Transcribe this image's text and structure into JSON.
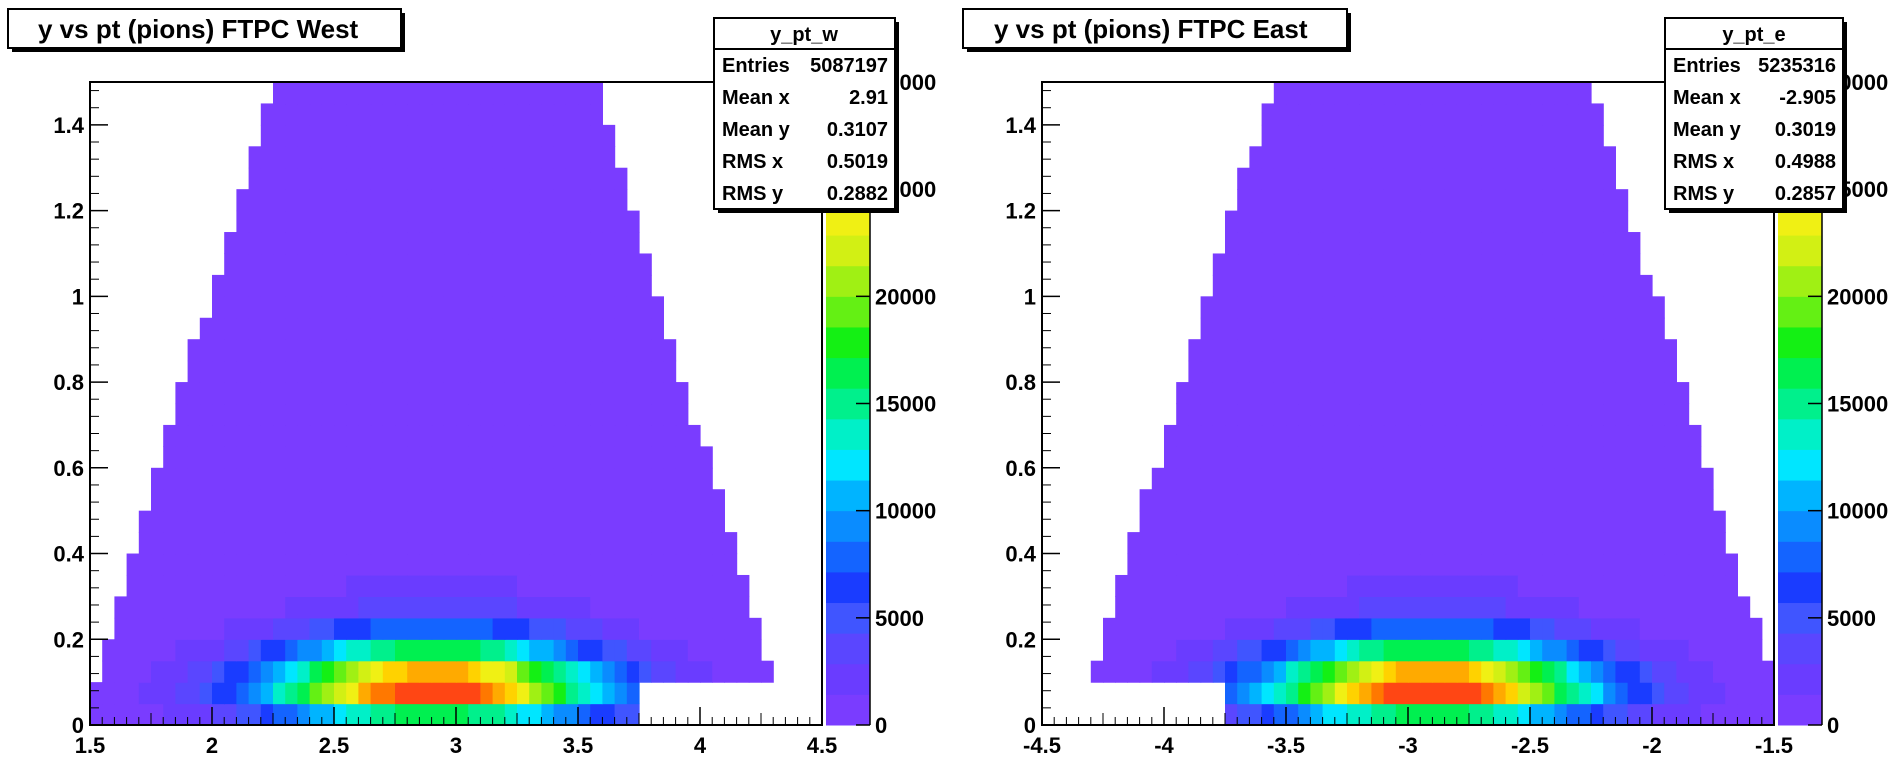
{
  "palette": [
    "#7a3cff",
    "#6a3cff",
    "#5a46ff",
    "#4055ff",
    "#1a3cff",
    "#1464ff",
    "#0a8cff",
    "#00b4ff",
    "#00e6ff",
    "#00f0c8",
    "#00f08c",
    "#00f050",
    "#14f014",
    "#64f014",
    "#a0f014",
    "#d2f014",
    "#f0f014",
    "#ffd200",
    "#ffaa00",
    "#ff7800",
    "#ff4614"
  ],
  "chart_data": [
    {
      "id": "west",
      "type": "heatmap",
      "title": "y vs pt (pions) FTPC West",
      "xlim": [
        1.5,
        4.5
      ],
      "ylim": [
        0,
        1.5
      ],
      "zlim": [
        0,
        30000
      ],
      "x_ticks": [
        "1.5",
        "2",
        "2.5",
        "3",
        "3.5",
        "4",
        "4.5"
      ],
      "x_tick_values": [
        1.5,
        2,
        2.5,
        3,
        3.5,
        4,
        4.5
      ],
      "y_ticks": [
        "0",
        "0.2",
        "0.4",
        "0.6",
        "0.8",
        "1",
        "1.2",
        "1.4"
      ],
      "y_tick_values": [
        0,
        0.2,
        0.4,
        0.6,
        0.8,
        1.0,
        1.2,
        1.4
      ],
      "z_ticks": [
        "0",
        "5000",
        "10000",
        "15000",
        "20000",
        "25000",
        "30000"
      ],
      "z_tick_values": [
        0,
        5000,
        10000,
        15000,
        20000,
        25000,
        30000
      ],
      "stats": {
        "name": "y_pt_w",
        "rows": [
          [
            "Entries",
            "5087197"
          ],
          [
            "Mean x",
            "2.91"
          ],
          [
            "Mean y",
            "0.3107"
          ],
          [
            "RMS x",
            "0.5019"
          ],
          [
            "RMS y",
            "0.2882"
          ]
        ]
      },
      "mean_x": 2.91,
      "rms_x": 0.5019,
      "x_min_data": 1.5,
      "x_max_data": 4.3,
      "low_band_x_max": 3.75,
      "apex_pt": 1.05,
      "apex_width": 0.85
    },
    {
      "id": "east",
      "type": "heatmap",
      "title": "y vs pt (pions) FTPC East",
      "xlim": [
        -4.5,
        -1.5
      ],
      "ylim": [
        0,
        1.5
      ],
      "zlim": [
        0,
        30000
      ],
      "x_ticks": [
        "-4.5",
        "-4",
        "-3.5",
        "-3",
        "-2.5",
        "-2",
        "-1.5"
      ],
      "x_tick_values": [
        -4.5,
        -4,
        -3.5,
        -3,
        -2.5,
        -2,
        -1.5
      ],
      "y_ticks": [
        "0",
        "0.2",
        "0.4",
        "0.6",
        "0.8",
        "1",
        "1.2",
        "1.4"
      ],
      "y_tick_values": [
        0,
        0.2,
        0.4,
        0.6,
        0.8,
        1.0,
        1.2,
        1.4
      ],
      "z_ticks": [
        "0",
        "5000",
        "10000",
        "15000",
        "20000",
        "25000",
        "30000"
      ],
      "z_tick_values": [
        0,
        5000,
        10000,
        15000,
        20000,
        25000,
        30000
      ],
      "stats": {
        "name": "y_pt_e",
        "rows": [
          [
            "Entries",
            "5235316"
          ],
          [
            "Mean x",
            "-2.905"
          ],
          [
            "Mean y",
            "0.3019"
          ],
          [
            "RMS x",
            "0.4988"
          ],
          [
            "RMS y",
            "0.2857"
          ]
        ]
      },
      "mean_x": -2.905,
      "rms_x": 0.4988,
      "x_min_data": -4.3,
      "x_max_data": -1.5,
      "low_band_x_min": -3.75,
      "apex_pt": 1.05,
      "apex_width": 0.85
    }
  ]
}
